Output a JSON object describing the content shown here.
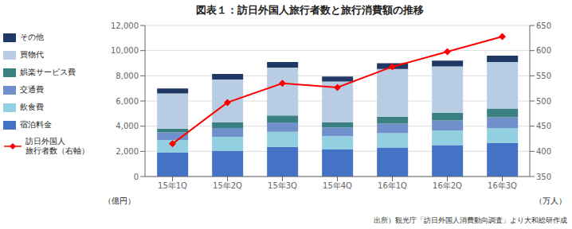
{
  "chart_data": {
    "type": "bar",
    "title": "図表１：訪日外国人旅行者数と旅行消費額の推移",
    "categories": [
      "15年1Q",
      "15年2Q",
      "15年3Q",
      "15年4Q",
      "16年1Q",
      "16年2Q",
      "16年3Q"
    ],
    "stacked": true,
    "series": [
      {
        "name": "宿泊料金",
        "color": "#4472c4",
        "values": [
          1900,
          2050,
          2350,
          2150,
          2300,
          2500,
          2650
        ]
      },
      {
        "name": "飲食費",
        "color": "#92cfe0",
        "values": [
          1000,
          1100,
          1200,
          1050,
          1150,
          1150,
          1200
        ]
      },
      {
        "name": "交通費",
        "color": "#7090cc",
        "values": [
          600,
          700,
          750,
          700,
          750,
          800,
          850
        ]
      },
      {
        "name": "娯楽サービス費",
        "color": "#3b8080",
        "values": [
          300,
          450,
          550,
          400,
          550,
          600,
          700
        ]
      },
      {
        "name": "買物代",
        "color": "#b8cce4",
        "values": [
          2800,
          3400,
          3800,
          3250,
          3800,
          3700,
          3700
        ]
      },
      {
        "name": "その他",
        "color": "#1f3864",
        "values": [
          400,
          450,
          450,
          400,
          450,
          450,
          500
        ]
      },
      {
        "name": "訪日外国人\n旅行者数（右軸）",
        "type": "line",
        "axis": "y2",
        "color": "#ff0000",
        "marker": "diamond",
        "values": [
          415,
          497,
          535,
          527,
          568,
          598,
          628
        ]
      }
    ],
    "ylim": [
      0,
      12000
    ],
    "yticks": [
      0,
      {
        "value": 2000,
        "label": "2,000"
      },
      {
        "value": 4000,
        "label": "4,000"
      },
      {
        "value": 6000,
        "label": "6,000"
      },
      {
        "value": 8000,
        "label": "8,000"
      },
      {
        "value": 10000,
        "label": "10,000"
      },
      {
        "value": 12000,
        "label": "12,000"
      }
    ],
    "y2lim": [
      350,
      650
    ],
    "y2ticks": [
      350,
      400,
      450,
      500,
      550,
      600,
      650
    ],
    "ylabel": "（億円）",
    "y2label": "（万人）",
    "grid": true,
    "legend": "left",
    "annotations": [
      "出所）観光庁「訪日外国人消費動向調査」より大和総研作成"
    ]
  }
}
